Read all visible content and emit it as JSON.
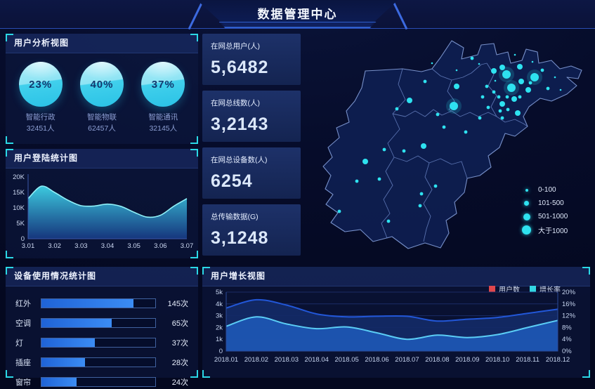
{
  "header": {
    "title": "数据管理中心"
  },
  "panels": {
    "user_analysis": {
      "title": "用户分析视图",
      "items": [
        {
          "percent": "23%",
          "label": "智能行政",
          "count": "32451人"
        },
        {
          "percent": "40%",
          "label": "智能物联",
          "count": "62457人"
        },
        {
          "percent": "37%",
          "label": "智能通讯",
          "count": "32145人"
        }
      ]
    },
    "login_stats": {
      "title": "用户登陆统计图"
    },
    "device_usage": {
      "title": "设备使用情况统计图"
    },
    "user_growth": {
      "title": "用户增长视图"
    }
  },
  "stats": [
    {
      "label": "在网总用户(人)",
      "value": "5,6482"
    },
    {
      "label": "在网总线数(人)",
      "value": "3,2143"
    },
    {
      "label": "在网总设备数(人)",
      "value": "6254"
    },
    {
      "label": "总传输数据(G)",
      "value": "3,1248"
    }
  ],
  "map": {
    "legend": [
      {
        "label": "0-100",
        "size": 4
      },
      {
        "label": "101-500",
        "size": 7
      },
      {
        "label": "501-1000",
        "size": 10
      },
      {
        "label": "大于1000",
        "size": 13
      }
    ],
    "dots": {
      "big": [
        [
          266,
          58
        ],
        [
          306,
          62
        ],
        [
          273,
          77
        ],
        [
          191,
          103
        ]
      ],
      "medium": [
        [
          260,
          48
        ],
        [
          285,
          47
        ],
        [
          248,
          53
        ],
        [
          287,
          68
        ],
        [
          297,
          80
        ],
        [
          260,
          100
        ],
        [
          277,
          93
        ],
        [
          195,
          75
        ],
        [
          128,
          95
        ],
        [
          65,
          182
        ],
        [
          148,
          160
        ],
        [
          282,
          113
        ]
      ],
      "small": [
        [
          217,
          35
        ],
        [
          238,
          75
        ],
        [
          232,
          90
        ],
        [
          248,
          83
        ],
        [
          255,
          90
        ],
        [
          267,
          90
        ],
        [
          240,
          105
        ],
        [
          257,
          110
        ],
        [
          268,
          108
        ],
        [
          285,
          90
        ],
        [
          300,
          70
        ],
        [
          317,
          52
        ],
        [
          325,
          78
        ],
        [
          150,
          68
        ],
        [
          177,
          133
        ],
        [
          168,
          115
        ],
        [
          208,
          140
        ],
        [
          228,
          120
        ],
        [
          260,
          120
        ],
        [
          110,
          107
        ],
        [
          92,
          165
        ],
        [
          120,
          167
        ],
        [
          145,
          228
        ],
        [
          165,
          217
        ],
        [
          53,
          210
        ],
        [
          85,
          207
        ],
        [
          28,
          253
        ],
        [
          98,
          267
        ],
        [
          143,
          245
        ]
      ],
      "tiny": [
        [
          195,
          52
        ],
        [
          278,
          30
        ],
        [
          335,
          62
        ],
        [
          343,
          80
        ],
        [
          227,
          43
        ],
        [
          250,
          67
        ],
        [
          303,
          40
        ],
        [
          160,
          42
        ]
      ]
    }
  },
  "chart_data": [
    {
      "id": "login",
      "type": "area",
      "title": "用户登陆统计图",
      "x": [
        "3.01",
        "3.02",
        "3.03",
        "3.04",
        "3.05",
        "3.06",
        "3.07"
      ],
      "values": [
        13000,
        15000,
        10700,
        11200,
        8600,
        7600,
        13000
      ],
      "curve_samples_k": [
        13,
        17,
        15,
        12.5,
        10.7,
        10.6,
        11.2,
        10.5,
        8.6,
        7,
        7.6,
        10.5,
        13
      ],
      "ylabels": [
        "0",
        "5K",
        "10K",
        "15K",
        "20K"
      ],
      "ylim": [
        0,
        20000
      ],
      "grid": false,
      "colors": {
        "line": "#8ff0f8",
        "fill_top": "#3fd4e8",
        "fill_bottom": "#173a85"
      }
    },
    {
      "id": "device",
      "type": "bar",
      "title": "设备使用情况统计图",
      "categories": [
        "红外",
        "空调",
        "灯",
        "插座",
        "窗帘"
      ],
      "values": [
        145,
        65,
        37,
        28,
        24
      ],
      "unit": "次",
      "value_labels": [
        "145次",
        "65次",
        "37次",
        "28次",
        "24次"
      ],
      "fill_percent": [
        81,
        62,
        47,
        38,
        31
      ],
      "colors": {
        "bar": "#2e7ff0",
        "track_border": "#40619f"
      }
    },
    {
      "id": "growth",
      "type": "area",
      "title": "用户增长视图",
      "categories": [
        "2018.01",
        "2018.02",
        "2018.03",
        "2018.04",
        "2018.05",
        "2018.06",
        "2018.07",
        "2018.08",
        "2018.09",
        "2018.10",
        "2018.11",
        "2018.12"
      ],
      "series": [
        {
          "name": "用户数",
          "axis": "left",
          "values": [
            3650,
            4350,
            3900,
            3150,
            2900,
            2950,
            2950,
            2550,
            2700,
            2850,
            3200,
            3550
          ],
          "line": "#2257d8",
          "fill": "#132a66",
          "marker": "#e0474d"
        },
        {
          "name": "增长率",
          "axis": "right",
          "values": [
            8.4,
            11.6,
            9.2,
            7.6,
            8.2,
            6.2,
            4.0,
            5.4,
            4.6,
            5.6,
            8.0,
            10.4
          ],
          "line": "#5bcdf5",
          "fill": "#1d55b2",
          "marker": "#33d6e2"
        }
      ],
      "left_ylabels": [
        "0",
        "1k",
        "2k",
        "3k",
        "4k",
        "5k"
      ],
      "left_ylim": [
        0,
        5000
      ],
      "right_ylabels": [
        "0%",
        "4%",
        "8%",
        "12%",
        "16%",
        "20%"
      ],
      "right_ylim": [
        0,
        20
      ],
      "legend_position": "top-right",
      "grid": true
    }
  ],
  "appearance": {
    "accent_cyan": "#2bd8e6",
    "sphere_cyan": "#3ecfec",
    "bar_blue": "#2e7ff0",
    "panel_bg": "#0f1c46",
    "page_bg": "#060c2a",
    "map_region_fill": "#0e1e50",
    "map_border": "#7d97d2",
    "dot_cyan": "#2ee2f0",
    "legend_red": "#e0474d",
    "text_light": "#eef3ff",
    "text_muted": "#8d9fd4"
  }
}
